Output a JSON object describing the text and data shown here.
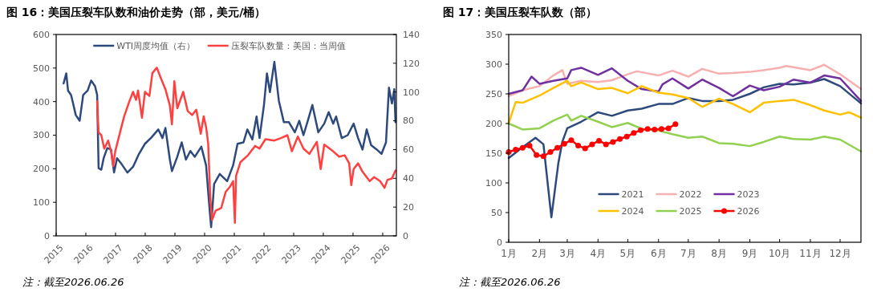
{
  "chart_data": [
    {
      "type": "line",
      "title": "图 16：美国压裂车队数和油价走势（部，美元/桶）",
      "annotations": [
        "注：截至2026.06.26"
      ],
      "legend": "top",
      "xlim": [
        2015,
        2026.46
      ],
      "xticks": [
        2015,
        2016,
        2017,
        2018,
        2019,
        2020,
        2021,
        2022,
        2023,
        2024,
        2025,
        2026
      ],
      "ylim": [
        0,
        600
      ],
      "yticks": [
        0,
        100,
        200,
        300,
        400,
        500,
        600
      ],
      "y2lim": [
        0,
        140
      ],
      "y2ticks": [
        0,
        20,
        40,
        60,
        80,
        100,
        120,
        140
      ],
      "series": [
        {
          "name": "WTI周度均值（右）",
          "color": "#2e4a7d",
          "axis": "y2",
          "x": [
            2015.25,
            2015.34,
            2015.4,
            2015.5,
            2015.56,
            2015.66,
            2015.79,
            2015.91,
            2016.06,
            2016.18,
            2016.31,
            2016.38,
            2016.43,
            2016.52,
            2016.6,
            2016.72,
            2016.85,
            2016.95,
            2017.05,
            2017.2,
            2017.4,
            2017.59,
            2017.79,
            2017.99,
            2018.19,
            2018.44,
            2018.58,
            2018.68,
            2018.83,
            2018.9,
            2019.08,
            2019.23,
            2019.37,
            2019.52,
            2019.67,
            2019.89,
            2020.05,
            2020.15,
            2020.22,
            2020.32,
            2020.51,
            2020.76,
            2020.96,
            2021.11,
            2021.31,
            2021.44,
            2021.61,
            2021.75,
            2021.85,
            2022.0,
            2022.1,
            2022.2,
            2022.35,
            2022.5,
            2022.67,
            2022.84,
            2023.04,
            2023.19,
            2023.33,
            2023.49,
            2023.63,
            2023.83,
            2024.03,
            2024.18,
            2024.33,
            2024.43,
            2024.62,
            2024.82,
            2025.02,
            2025.17,
            2025.32,
            2025.46,
            2025.61,
            2025.8,
            2025.96,
            2026.11,
            2026.21,
            2026.31,
            2026.39,
            2026.43
          ],
          "values": [
            106,
            113,
            101,
            98,
            93,
            84,
            80,
            98,
            101,
            108,
            104,
            98,
            47,
            46,
            54,
            61,
            60,
            44,
            54,
            50,
            44,
            48,
            57,
            64,
            68,
            74,
            68,
            75,
            53,
            45,
            55,
            65,
            53,
            59,
            55,
            62,
            49,
            23,
            6,
            36,
            43,
            38,
            49,
            64,
            65,
            74,
            67,
            83,
            68,
            91,
            113,
            100,
            121,
            94,
            79,
            79,
            72,
            80,
            70,
            81,
            91,
            72,
            78,
            86,
            78,
            83,
            68,
            70,
            78,
            68,
            60,
            74,
            63,
            60,
            57,
            65,
            103,
            92,
            102,
            79
          ]
        },
        {
          "name": "压裂车队数量：美国：当周值",
          "color": "#ff4040",
          "x": [
            2016.38,
            2016.43,
            2016.52,
            2016.62,
            2016.75,
            2016.85,
            2016.92,
            2016.99,
            2017.15,
            2017.29,
            2017.45,
            2017.59,
            2017.69,
            2017.76,
            2017.89,
            2017.99,
            2018.14,
            2018.24,
            2018.39,
            2018.53,
            2018.68,
            2018.83,
            2018.9,
            2018.98,
            2019.08,
            2019.28,
            2019.43,
            2019.58,
            2019.72,
            2019.87,
            2019.97,
            2020.05,
            2020.12,
            2020.19,
            2020.25,
            2020.37,
            2020.56,
            2020.71,
            2020.86,
            2020.96,
            2021.02,
            2021.06,
            2021.21,
            2021.46,
            2021.7,
            2021.85,
            2022.05,
            2022.35,
            2022.59,
            2022.79,
            2022.94,
            2023.14,
            2023.33,
            2023.53,
            2023.78,
            2023.91,
            2024.03,
            2024.33,
            2024.53,
            2024.72,
            2024.87,
            2024.94,
            2025.02,
            2025.17,
            2025.32,
            2025.56,
            2025.71,
            2025.91,
            2026.06,
            2026.16,
            2026.31,
            2026.43
          ],
          "values": [
            401,
            308,
            300,
            260,
            284,
            252,
            208,
            252,
            308,
            356,
            397,
            429,
            405,
            433,
            352,
            429,
            417,
            485,
            501,
            469,
            437,
            388,
            332,
            461,
            380,
            429,
            372,
            360,
            376,
            304,
            356,
            324,
            276,
            115,
            47,
            75,
            83,
            131,
            147,
            163,
            39,
            179,
            220,
            240,
            268,
            260,
            288,
            284,
            292,
            300,
            252,
            296,
            260,
            244,
            280,
            199,
            272,
            252,
            236,
            240,
            216,
            151,
            199,
            216,
            191,
            163,
            175,
            163,
            143,
            167,
            171,
            195
          ]
        }
      ]
    },
    {
      "type": "line",
      "title": "图 17：美国压裂车队数（部）",
      "annotations": [
        "注：截至2026.06.26"
      ],
      "legend": "bottom",
      "xlim": [
        "--01-01",
        "--12-22"
      ],
      "xticks": [
        {
          "value": "--01-01",
          "label": "1月"
        },
        {
          "value": "--02-01",
          "label": "2月"
        },
        {
          "value": "--03-01",
          "label": "3月"
        },
        {
          "value": "--04-01",
          "label": "4月"
        },
        {
          "value": "--05-01",
          "label": "5月"
        },
        {
          "value": "--06-01",
          "label": "6月"
        },
        {
          "value": "--07-01",
          "label": "7月"
        },
        {
          "value": "--08-01",
          "label": "8月"
        },
        {
          "value": "--09-01",
          "label": "9月"
        },
        {
          "value": "--10-01",
          "label": "10月"
        },
        {
          "value": "--11-01",
          "label": "11月"
        },
        {
          "value": "--12-01",
          "label": "12月"
        }
      ],
      "ylim": [
        0,
        350
      ],
      "yticks": [
        0,
        50,
        100,
        150,
        200,
        250,
        300,
        350
      ],
      "series": [
        {
          "name": "2021",
          "color": "#2e4a7d",
          "x": [
            "--01-01",
            "--01-15",
            "--01-28",
            "--02-05",
            "--02-13",
            "--02-20",
            "--02-24",
            "--03-01",
            "--03-15",
            "--04-01",
            "--04-15",
            "--05-01",
            "--05-15",
            "--06-01",
            "--06-15",
            "--07-01",
            "--07-15",
            "--08-01",
            "--08-15",
            "--09-01",
            "--09-15",
            "--10-01",
            "--10-15",
            "--11-01",
            "--11-15",
            "--12-01",
            "--12-22"
          ],
          "values": [
            142,
            160,
            176,
            165,
            42,
            133,
            169,
            192,
            203,
            219,
            213,
            222,
            225,
            233,
            233,
            243,
            238,
            238,
            240,
            250,
            261,
            267,
            266,
            269,
            275,
            263,
            234
          ]
        },
        {
          "name": "2022",
          "color": "#f7b0b0",
          "x": [
            "--01-01",
            "--01-15",
            "--02-01",
            "--02-15",
            "--02-24",
            "--03-01",
            "--03-15",
            "--04-01",
            "--04-15",
            "--05-01",
            "--05-10",
            "--06-01",
            "--06-15",
            "--07-01",
            "--07-15",
            "--08-01",
            "--08-15",
            "--09-01",
            "--09-15",
            "--10-01",
            "--10-08",
            "--11-01",
            "--11-15",
            "--12-01",
            "--12-22"
          ],
          "values": [
            246,
            256,
            263,
            281,
            290,
            267,
            272,
            270,
            273,
            283,
            288,
            281,
            289,
            279,
            292,
            284,
            285,
            287,
            290,
            294,
            297,
            290,
            299,
            283,
            258
          ]
        },
        {
          "name": "2023",
          "color": "#7030a0",
          "x": [
            "--01-01",
            "--01-15",
            "--01-24",
            "--02-01",
            "--02-15",
            "--03-01",
            "--03-05",
            "--03-15",
            "--04-01",
            "--04-15",
            "--05-01",
            "--05-15",
            "--06-01",
            "--06-05",
            "--06-15",
            "--07-01",
            "--07-15",
            "--08-01",
            "--08-15",
            "--09-01",
            "--09-15",
            "--10-01",
            "--10-15",
            "--11-01",
            "--11-15",
            "--12-01",
            "--12-22"
          ],
          "values": [
            250,
            256,
            279,
            267,
            272,
            276,
            290,
            294,
            282,
            293,
            272,
            258,
            254,
            266,
            276,
            259,
            274,
            260,
            246,
            264,
            256,
            262,
            274,
            269,
            281,
            276,
            238
          ]
        },
        {
          "name": "2024",
          "color": "#ffc000",
          "x": [
            "--01-01",
            "--01-08",
            "--01-15",
            "--02-01",
            "--02-15",
            "--03-01",
            "--03-05",
            "--03-15",
            "--04-01",
            "--04-15",
            "--05-01",
            "--05-15",
            "--06-01",
            "--06-15",
            "--07-01",
            "--07-15",
            "--08-01",
            "--08-15",
            "--09-01",
            "--09-15",
            "--10-01",
            "--10-15",
            "--11-01",
            "--11-15",
            "--12-01",
            "--12-10",
            "--12-22"
          ],
          "values": [
            201,
            236,
            235,
            247,
            260,
            272,
            263,
            269,
            258,
            260,
            251,
            263,
            252,
            249,
            243,
            228,
            242,
            233,
            219,
            235,
            238,
            240,
            231,
            222,
            215,
            219,
            210
          ]
        },
        {
          "name": "2025",
          "color": "#92d050",
          "x": [
            "--01-01",
            "--01-15",
            "--02-01",
            "--02-15",
            "--03-01",
            "--03-05",
            "--03-15",
            "--04-01",
            "--04-15",
            "--05-01",
            "--05-15",
            "--06-01",
            "--06-15",
            "--07-01",
            "--07-15",
            "--08-01",
            "--08-15",
            "--09-01",
            "--09-15",
            "--10-01",
            "--10-15",
            "--11-01",
            "--11-15",
            "--12-01",
            "--12-22"
          ],
          "values": [
            200,
            190,
            192,
            205,
            215,
            205,
            213,
            203,
            194,
            201,
            191,
            188,
            182,
            176,
            178,
            167,
            166,
            162,
            169,
            178,
            174,
            173,
            178,
            173,
            153
          ]
        },
        {
          "name": "2026",
          "color": "#ff0000",
          "marker": "circle",
          "x": [
            "--01-01",
            "--01-08",
            "--01-15",
            "--01-22",
            "--01-29",
            "--02-05",
            "--02-12",
            "--02-19",
            "--02-26",
            "--03-05",
            "--03-12",
            "--03-19",
            "--03-26",
            "--04-02",
            "--04-09",
            "--04-16",
            "--04-23",
            "--04-30",
            "--05-07",
            "--05-14",
            "--05-21",
            "--05-28",
            "--06-04",
            "--06-11",
            "--06-18"
          ],
          "values": [
            152,
            156,
            159,
            163,
            147,
            145,
            152,
            159,
            166,
            172,
            163,
            158,
            165,
            171,
            165,
            169,
            174,
            178,
            184,
            189,
            191,
            190,
            191,
            192,
            199
          ]
        }
      ]
    }
  ]
}
